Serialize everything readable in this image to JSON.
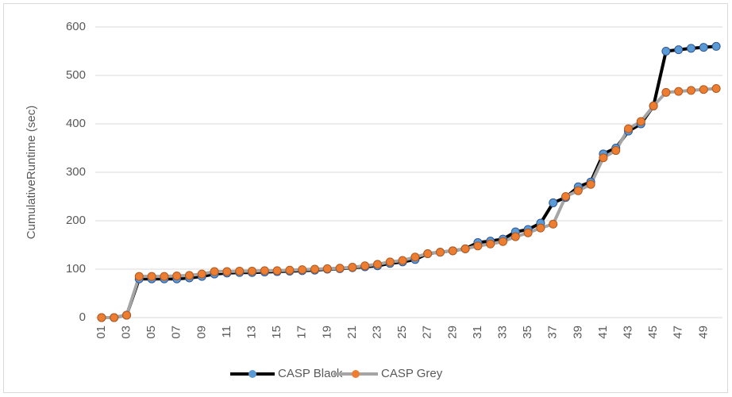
{
  "chart_data": {
    "type": "line",
    "y_label": "CumulativeRuntime (sec)",
    "categories": [
      "01",
      null,
      "03",
      null,
      "05",
      null,
      "07",
      null,
      "09",
      null,
      "11",
      null,
      "13",
      null,
      "15",
      null,
      "17",
      null,
      "19",
      null,
      "21",
      null,
      "23",
      null,
      "25",
      null,
      "27",
      null,
      "29",
      null,
      "31",
      null,
      "33",
      null,
      "35",
      null,
      "37",
      null,
      "39",
      null,
      "41",
      null,
      "43",
      null,
      "45",
      null,
      "47",
      null,
      "49",
      null
    ],
    "series": [
      {
        "name": "CASP Black",
        "color": "#000000",
        "marker_color": "#5b9bd5",
        "values": [
          0,
          0,
          5,
          80,
          80,
          80,
          80,
          82,
          85,
          90,
          92,
          93,
          93,
          94,
          95,
          96,
          97,
          98,
          100,
          101,
          103,
          105,
          107,
          112,
          115,
          120,
          132,
          135,
          138,
          142,
          155,
          158,
          162,
          177,
          182,
          195,
          237,
          248,
          270,
          280,
          338,
          350,
          385,
          400,
          437,
          550,
          553,
          556,
          558,
          560
        ]
      },
      {
        "name": "CASP Grey",
        "color": "#a5a5a5",
        "marker_color": "#ed7d31",
        "values": [
          0,
          0,
          5,
          85,
          85,
          85,
          86,
          87,
          90,
          95,
          95,
          96,
          96,
          97,
          97,
          98,
          99,
          100,
          101,
          102,
          104,
          107,
          110,
          115,
          118,
          125,
          132,
          135,
          138,
          142,
          148,
          152,
          157,
          167,
          175,
          185,
          193,
          250,
          262,
          275,
          330,
          345,
          390,
          405,
          437,
          465,
          467,
          469,
          471,
          473
        ]
      }
    ],
    "ylim": [
      0,
      600
    ],
    "yticks": [
      0,
      100,
      200,
      300,
      400,
      500,
      600
    ],
    "grid": true,
    "legend": "bottom"
  }
}
